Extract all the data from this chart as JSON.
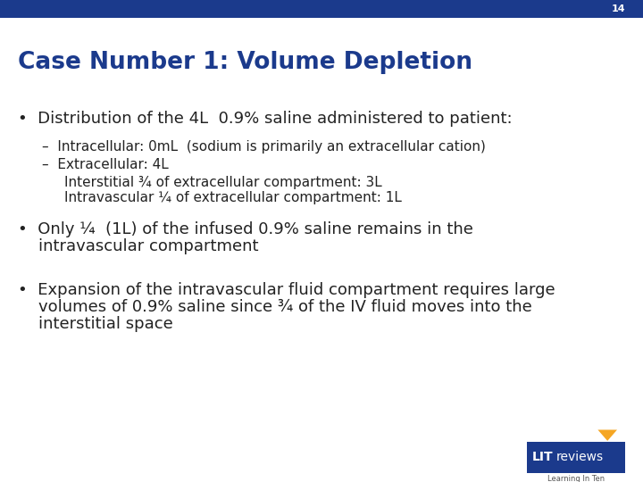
{
  "slide_number": "14",
  "title": "Case Number 1: Volume Depletion",
  "title_color": "#1B3A8C",
  "title_fontsize": 19,
  "background_color": "#FFFFFF",
  "header_bar_color": "#1B3A8C",
  "bullet1": "Distribution of the 4L  0.9% saline administered to patient:",
  "sub1a": "–  Intracellular: 0mL  (sodium is primarily an extracellular cation)",
  "sub1b": "–  Extracellular: 4L",
  "sub1c": "Interstitial ¾ of extracellular compartment: 3L",
  "sub1d": "Intravascular ¼ of extracellular compartment: 1L",
  "bullet2_line1": "Only ¼  (1L) of the infused 0.9% saline remains in the",
  "bullet2_line2": "intravascular compartment",
  "bullet3_line1": "Expansion of the intravascular fluid compartment requires large",
  "bullet3_line2": "volumes of 0.9% saline since ¾ of the IV fluid moves into the",
  "bullet3_line3": "interstitial space",
  "bullet_color": "#222222",
  "bullet_fontsize": 13,
  "sub_fontsize": 11,
  "logo_box_color": "#1B3A8C",
  "logo_accent_color": "#F5A623"
}
